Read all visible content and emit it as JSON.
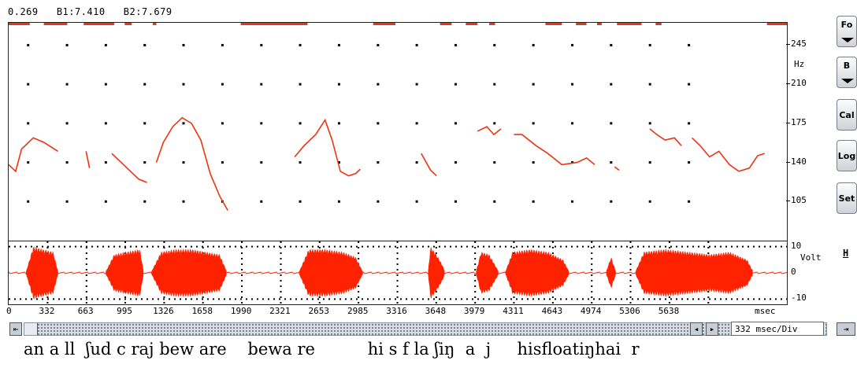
{
  "readout": {
    "cursor": "0.269",
    "b1": "B1:7.410",
    "b2": "B2:7.679"
  },
  "pitch": {
    "unit": "Hz",
    "ticks": [
      "245",
      "210",
      "175",
      "140",
      "105"
    ],
    "tick_values": [
      245,
      210,
      175,
      140,
      105
    ],
    "range": [
      70,
      265
    ],
    "trace_color": "#ee3311",
    "segments": [
      [
        [
          0,
          138
        ],
        [
          60,
          132
        ],
        [
          110,
          152
        ],
        [
          210,
          162
        ],
        [
          300,
          158
        ],
        [
          420,
          150
        ]
      ],
      [
        [
          660,
          150
        ],
        [
          690,
          135
        ]
      ],
      [
        [
          880,
          148
        ],
        [
          960,
          140
        ],
        [
          1040,
          132
        ],
        [
          1110,
          125
        ],
        [
          1180,
          122
        ]
      ],
      [
        [
          1260,
          140
        ],
        [
          1320,
          158
        ],
        [
          1400,
          172
        ],
        [
          1480,
          180
        ],
        [
          1560,
          175
        ],
        [
          1640,
          160
        ],
        [
          1720,
          130
        ],
        [
          1800,
          110
        ],
        [
          1870,
          97
        ]
      ],
      [
        [
          2440,
          145
        ],
        [
          2520,
          155
        ],
        [
          2620,
          165
        ],
        [
          2700,
          178
        ],
        [
          2760,
          160
        ],
        [
          2830,
          132
        ],
        [
          2900,
          128
        ],
        [
          2960,
          130
        ],
        [
          3000,
          134
        ]
      ],
      [
        [
          3520,
          148
        ],
        [
          3600,
          133
        ],
        [
          3650,
          128
        ]
      ],
      [
        [
          4000,
          168
        ],
        [
          4080,
          172
        ],
        [
          4140,
          165
        ],
        [
          4200,
          170
        ]
      ],
      [
        [
          4311,
          165
        ],
        [
          4380,
          165
        ],
        [
          4500,
          155
        ],
        [
          4600,
          148
        ],
        [
          4720,
          138
        ],
        [
          4850,
          140
        ],
        [
          4930,
          144
        ],
        [
          5000,
          138
        ]
      ],
      [
        [
          5170,
          136
        ],
        [
          5210,
          133
        ]
      ],
      [
        [
          5470,
          170
        ],
        [
          5530,
          165
        ],
        [
          5600,
          160
        ],
        [
          5680,
          162
        ],
        [
          5740,
          155
        ]
      ],
      [
        [
          5830,
          162
        ],
        [
          5900,
          155
        ],
        [
          5980,
          145
        ],
        [
          6060,
          150
        ],
        [
          6150,
          138
        ],
        [
          6230,
          132
        ],
        [
          6320,
          135
        ],
        [
          6390,
          146
        ],
        [
          6450,
          148
        ]
      ]
    ],
    "voiced_bars": [
      [
        0,
        180
      ],
      [
        300,
        500
      ],
      [
        640,
        900
      ],
      [
        990,
        1050
      ],
      [
        1230,
        1260
      ],
      [
        1980,
        2550
      ],
      [
        3110,
        3300
      ],
      [
        3680,
        3780
      ],
      [
        3900,
        4000
      ],
      [
        4100,
        4150
      ],
      [
        4580,
        4720
      ],
      [
        4840,
        4930
      ],
      [
        5020,
        5060
      ],
      [
        5190,
        5400
      ],
      [
        5520,
        5570
      ],
      [
        6470,
        6700
      ]
    ]
  },
  "wave": {
    "unit": "Volt",
    "ticks": [
      "10",
      "0",
      "-10"
    ],
    "tick_values": [
      10,
      0,
      -10
    ],
    "range": [
      -12,
      12
    ],
    "color": "#ff2200",
    "bursts": [
      [
        [
          150,
          420
        ],
        [
          210,
          10
        ],
        [
          290,
          9
        ],
        [
          380,
          8
        ]
      ],
      [
        [
          830,
          1150
        ],
        [
          900,
          7
        ],
        [
          1000,
          8
        ],
        [
          1120,
          9
        ]
      ],
      [
        [
          1220,
          1860
        ],
        [
          1300,
          8
        ],
        [
          1420,
          9
        ],
        [
          1560,
          9
        ],
        [
          1680,
          8
        ],
        [
          1800,
          7
        ]
      ],
      [
        [
          2480,
          3020
        ],
        [
          2560,
          9
        ],
        [
          2700,
          9
        ],
        [
          2850,
          8
        ],
        [
          2960,
          6
        ]
      ],
      [
        [
          3580,
          3720
        ],
        [
          3600,
          10
        ],
        [
          3650,
          7
        ],
        [
          3700,
          3
        ]
      ],
      [
        [
          3990,
          4180
        ],
        [
          4030,
          8
        ],
        [
          4100,
          7
        ]
      ],
      [
        [
          4240,
          4780
        ],
        [
          4300,
          8
        ],
        [
          4450,
          9
        ],
        [
          4600,
          8
        ],
        [
          4730,
          5
        ]
      ],
      [
        [
          5100,
          5180
        ],
        [
          5140,
          6
        ]
      ],
      [
        [
          5350,
          6350
        ],
        [
          5420,
          8
        ],
        [
          5600,
          9
        ],
        [
          5800,
          8
        ],
        [
          5980,
          7
        ],
        [
          6150,
          8
        ],
        [
          6300,
          5
        ]
      ]
    ]
  },
  "time_axis": {
    "ticks": [
      "0",
      "332",
      "663",
      "995",
      "1326",
      "1658",
      "1990",
      "2321",
      "2653",
      "2985",
      "3316",
      "3648",
      "3979",
      "4311",
      "4643",
      "4974",
      "5306",
      "5638"
    ],
    "tick_values": [
      0,
      332,
      663,
      995,
      1326,
      1658,
      1990,
      2321,
      2653,
      2985,
      3316,
      3648,
      3979,
      4311,
      4643,
      4974,
      5306,
      5638
    ],
    "unit": "msec",
    "range": [
      0,
      6640
    ]
  },
  "controls": {
    "fo_button": "Fo",
    "b_button": "B",
    "cal_button": "Cal",
    "log_button": "Log",
    "set_button": "Set",
    "h_label": "H"
  },
  "div_readout": "332 msec/Div",
  "transcript": "an a ll  ʃud c raj bew are    bewa re          hi s f la ʃiŋ  a  j     hisfloatiŋhai  r"
}
